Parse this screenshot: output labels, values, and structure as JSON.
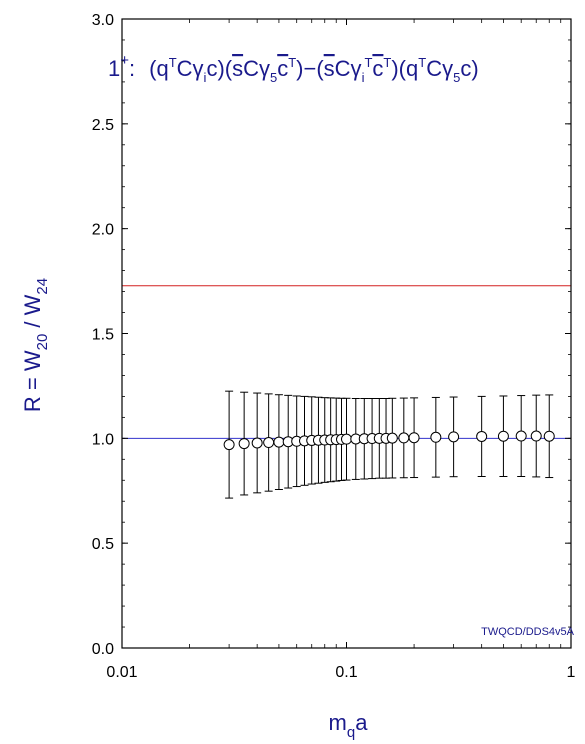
{
  "chart_data": {
    "type": "scatter",
    "title_parts": {
      "spin": "1",
      "parity": "+",
      "colon": ":",
      "op1": "(q",
      "T1": "T",
      "op2": "Cγ",
      "i1": "i",
      "op3": "c)(",
      "sbar1": "s",
      "op4": "Cγ",
      "five1": "5",
      "cbar1": "c",
      "T2": "T",
      "op5": ")−(",
      "sbar2": "s",
      "op6": "Cγ",
      "i2": "i",
      "T3": "T",
      "cbar2": "c",
      "T4": "T",
      "op7": ")(q",
      "T5": "T",
      "op8": "Cγ",
      "five2": "5",
      "op9": "c)"
    },
    "xlabel": {
      "main": "m",
      "sub": "q",
      "rest": "a"
    },
    "ylabel": {
      "p1": "R = W",
      "s1": "20",
      "p2": " / W",
      "s2": "24"
    },
    "x_scale": "log",
    "xlim": [
      0.01,
      1
    ],
    "ylim": [
      0.0,
      3.0
    ],
    "x_ticks": [
      0.01,
      0.1,
      1
    ],
    "x_tick_labels": [
      "0.01",
      "0.1",
      "1"
    ],
    "y_ticks": [
      0.0,
      0.5,
      1.0,
      1.5,
      2.0,
      2.5,
      3.0
    ],
    "y_tick_labels": [
      "0.0",
      "0.5",
      "1.0",
      "1.5",
      "2.0",
      "2.5",
      "3.0"
    ],
    "reference_lines": [
      {
        "y": 1.728,
        "color": "#d42020"
      },
      {
        "y": 1.0,
        "color": "#3333cc"
      }
    ],
    "series": [
      {
        "marker": "open-circle",
        "x": [
          0.03,
          0.035,
          0.04,
          0.045,
          0.05,
          0.055,
          0.06,
          0.065,
          0.07,
          0.075,
          0.08,
          0.085,
          0.09,
          0.095,
          0.1,
          0.11,
          0.12,
          0.13,
          0.14,
          0.15,
          0.16,
          0.18,
          0.2,
          0.25,
          0.3,
          0.4,
          0.5,
          0.6,
          0.7,
          0.8
        ],
        "y": [
          0.97,
          0.975,
          0.978,
          0.98,
          0.982,
          0.984,
          0.986,
          0.988,
          0.99,
          0.991,
          0.992,
          0.993,
          0.994,
          0.995,
          0.996,
          0.997,
          0.998,
          0.999,
          1.0,
          1.0,
          1.001,
          1.002,
          1.003,
          1.005,
          1.007,
          1.009,
          1.01,
          1.011,
          1.011,
          1.01
        ],
        "yerr": [
          0.255,
          0.245,
          0.238,
          0.232,
          0.226,
          0.221,
          0.216,
          0.212,
          0.208,
          0.205,
          0.202,
          0.2,
          0.198,
          0.196,
          0.195,
          0.193,
          0.192,
          0.191,
          0.19,
          0.19,
          0.19,
          0.19,
          0.19,
          0.19,
          0.19,
          0.191,
          0.192,
          0.193,
          0.195,
          0.197
        ]
      }
    ],
    "watermark": "TWQCD/DDS4v5A",
    "colors": {
      "axis_text": "#1a1a8c",
      "frame": "#000000"
    }
  }
}
